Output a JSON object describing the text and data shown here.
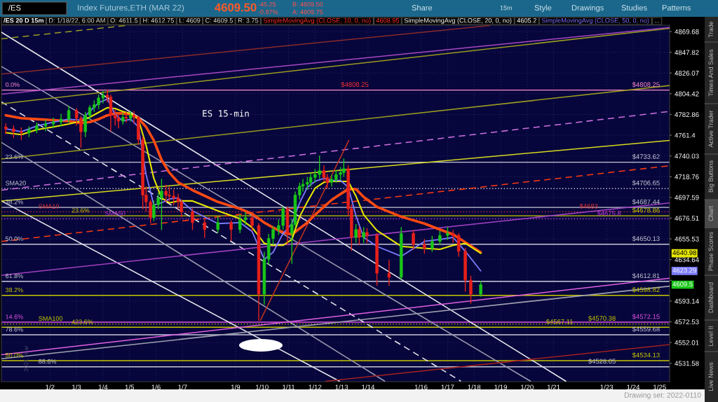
{
  "chart_data": {
    "type": "candlestick",
    "title": "Index Futures,ETH (MAR 22)",
    "x": [
      "2021-12-31T08:00",
      "2021-12-31T15:00",
      "2021-12-31T22:00",
      "2022-01-01T05:00",
      "2022-01-01T12:00",
      "2022-01-01T20:00",
      "2022-01-02T03:00",
      "2022-01-02T10:00",
      "2022-01-02T17:00",
      "2022-01-03T00:00",
      "2022-01-03T04:00",
      "2022-01-03T08:00",
      "2022-01-03T12:00",
      "2022-01-03T16:00",
      "2022-01-03T20:00",
      "2022-01-04T00:00",
      "2022-01-04T04:00",
      "2022-01-04T07:00",
      "2022-01-04T11:00",
      "2022-01-04T14:00",
      "2022-01-04T18:00",
      "2022-01-04T21:00",
      "2022-01-05T01:00",
      "2022-01-05T04:00",
      "2022-01-05T08:00",
      "2022-01-05T12:00",
      "2022-01-05T15:00",
      "2022-01-05T19:00",
      "2022-01-05T22:00",
      "2022-01-06T02:00",
      "2022-01-06T05:00",
      "2022-01-06T09:00",
      "2022-01-06T12:00",
      "2022-01-06T16:00",
      "2022-01-06T20:00",
      "2022-01-06T23:00",
      "2022-01-07T09:00",
      "2022-01-07T20:00",
      "2022-01-08T08:00",
      "2022-01-08T20:00",
      "2022-01-09T04:00",
      "2022-01-09T09:00",
      "2022-01-09T15:00",
      "2022-01-09T21:00",
      "2022-01-10T02:00",
      "2022-01-10T06:00",
      "2022-01-10T10:00",
      "2022-01-10T15:00",
      "2022-01-10T19:00",
      "2022-01-10T23:00",
      "2022-01-11T03:00",
      "2022-01-11T06:00",
      "2022-01-11T10:00",
      "2022-01-11T13:00",
      "2022-01-11T17:00",
      "2022-01-11T20:00",
      "2022-01-12T00:00",
      "2022-01-12T04:00",
      "2022-01-12T08:00",
      "2022-01-12T11:00",
      "2022-01-12T15:00",
      "2022-01-12T19:00",
      "2022-01-12T23:00",
      "2022-01-13T02:00",
      "2022-01-13T06:00",
      "2022-01-13T09:00",
      "2022-01-13T13:00",
      "2022-01-13T16:00",
      "2022-01-13T20:00",
      "2022-01-13T23:00",
      "2022-01-14T08:00",
      "2022-01-14T19:00",
      "2022-01-15T06:00",
      "2022-01-15T17:00",
      "2022-01-16T03:00",
      "2022-01-16T10:00",
      "2022-01-16T17:00",
      "2022-01-17T00:00",
      "2022-01-17T05:00",
      "2022-01-17T10:00",
      "2022-01-17T16:00",
      "2022-01-17T21:00",
      "2022-01-18T06:00"
    ],
    "ohlc": [
      [
        4770,
        4773,
        4763,
        4768
      ],
      [
        4768,
        4771,
        4759,
        4765
      ],
      [
        4765,
        4769,
        4757,
        4764
      ],
      [
        4764,
        4770,
        4760,
        4767
      ],
      [
        4767,
        4774,
        4764,
        4771
      ],
      [
        4771,
        4777,
        4766,
        4773
      ],
      [
        4773,
        4779,
        4769,
        4775
      ],
      [
        4775,
        4783,
        4771,
        4778
      ],
      [
        4778,
        4791,
        4775,
        4787
      ],
      [
        4787,
        4789,
        4772,
        4779
      ],
      [
        4779,
        4781,
        4749,
        4765
      ],
      [
        4765,
        4785,
        4760,
        4782
      ],
      [
        4782,
        4792,
        4778,
        4790
      ],
      [
        4790,
        4797,
        4786,
        4793
      ],
      [
        4793,
        4803,
        4789,
        4800
      ],
      [
        4800,
        4807,
        4795,
        4803
      ],
      [
        4803,
        4808,
        4796,
        4801
      ],
      [
        4801,
        4803,
        4766,
        4782
      ],
      [
        4782,
        4787,
        4772,
        4779
      ],
      [
        4779,
        4783,
        4769,
        4776
      ],
      [
        4776,
        4784,
        4773,
        4780
      ],
      [
        4780,
        4785,
        4775,
        4779
      ],
      [
        4779,
        4786,
        4776,
        4782
      ],
      [
        4782,
        4786,
        4774,
        4780
      ],
      [
        4780,
        4781,
        4752,
        4757
      ],
      [
        4757,
        4760,
        4686,
        4700
      ],
      [
        4700,
        4708,
        4684,
        4693
      ],
      [
        4693,
        4695,
        4672,
        4677
      ],
      [
        4677,
        4694,
        4674,
        4690
      ],
      [
        4690,
        4702,
        4686,
        4697
      ],
      [
        4697,
        4716,
        4665,
        4704
      ],
      [
        4704,
        4710,
        4693,
        4700
      ],
      [
        4700,
        4708,
        4694,
        4699
      ],
      [
        4699,
        4705,
        4690,
        4697
      ],
      [
        4697,
        4701,
        4686,
        4693
      ],
      [
        4693,
        4695,
        4678,
        4683
      ],
      [
        4683,
        4686,
        4665,
        4672
      ],
      [
        4672,
        4676,
        4657,
        4665
      ],
      [
        4665,
        4678,
        4662,
        4672
      ],
      [
        4672,
        4674,
        4654,
        4665
      ],
      [
        4665,
        4680,
        4662,
        4675
      ],
      [
        4675,
        4682,
        4670,
        4677
      ],
      [
        4677,
        4679,
        4664,
        4669
      ],
      [
        4669,
        4671,
        4574,
        4600
      ],
      [
        4600,
        4642,
        4590,
        4635
      ],
      [
        4635,
        4660,
        4630,
        4656
      ],
      [
        4656,
        4668,
        4650,
        4665
      ],
      [
        4665,
        4675,
        4660,
        4669
      ],
      [
        4669,
        4688,
        4665,
        4686
      ],
      [
        4686,
        4688,
        4650,
        4661
      ],
      [
        4661,
        4675,
        4631,
        4670
      ],
      [
        4670,
        4703,
        4668,
        4700
      ],
      [
        4700,
        4712,
        4696,
        4709
      ],
      [
        4709,
        4716,
        4704,
        4711
      ],
      [
        4711,
        4718,
        4706,
        4713
      ],
      [
        4713,
        4722,
        4709,
        4718
      ],
      [
        4718,
        4726,
        4713,
        4721
      ],
      [
        4721,
        4740,
        4717,
        4725
      ],
      [
        4725,
        4730,
        4714,
        4718
      ],
      [
        4718,
        4721,
        4707,
        4713
      ],
      [
        4713,
        4720,
        4709,
        4716
      ],
      [
        4716,
        4725,
        4713,
        4721
      ],
      [
        4721,
        4728,
        4716,
        4723
      ],
      [
        4723,
        4737,
        4719,
        4727
      ],
      [
        4727,
        4730,
        4679,
        4686
      ],
      [
        4686,
        4690,
        4644,
        4657
      ],
      [
        4657,
        4670,
        4652,
        4665
      ],
      [
        4665,
        4668,
        4650,
        4657
      ],
      [
        4657,
        4667,
        4652,
        4662
      ],
      [
        4662,
        4666,
        4652,
        4659
      ],
      [
        4659,
        4661,
        4609,
        4621
      ],
      [
        4621,
        4634,
        4609,
        4617
      ],
      [
        4617,
        4667,
        4615,
        4661
      ],
      [
        4661,
        4664,
        4645,
        4650
      ],
      [
        4650,
        4655,
        4641,
        4646
      ],
      [
        4646,
        4658,
        4643,
        4653
      ],
      [
        4653,
        4663,
        4650,
        4659
      ],
      [
        4659,
        4667,
        4655,
        4661
      ],
      [
        4661,
        4664,
        4652,
        4659
      ],
      [
        4659,
        4661,
        4638,
        4643
      ],
      [
        4643,
        4646,
        4603,
        4614
      ],
      [
        4614,
        4618,
        4591,
        4600
      ],
      [
        4600,
        4612.75,
        4598,
        4609.5
      ]
    ],
    "series": [
      {
        "type": "line",
        "color": "#7c7cff",
        "x": [
          "2021-12-31T08:00",
          "2021-12-31T22:00",
          "2022-01-01T12:00",
          "2022-01-02T03:00",
          "2022-01-02T17:00",
          "2022-01-03T04:00",
          "2022-01-03T12:00",
          "2022-01-03T20:00",
          "2022-01-04T04:00",
          "2022-01-04T11:00",
          "2022-01-04T18:00",
          "2022-01-05T01:00",
          "2022-01-05T08:00",
          "2022-01-05T15:00",
          "2022-01-05T22:00",
          "2022-01-06T05:00",
          "2022-01-06T12:00",
          "2022-01-06T20:00",
          "2022-01-07T09:00",
          "2022-01-08T08:00",
          "2022-01-09T04:00",
          "2022-01-09T15:00",
          "2022-01-10T02:00",
          "2022-01-10T10:00",
          "2022-01-10T19:00",
          "2022-01-11T03:00",
          "2022-01-11T10:00",
          "2022-01-11T17:00",
          "2022-01-12T00:00",
          "2022-01-12T08:00",
          "2022-01-12T15:00",
          "2022-01-12T23:00",
          "2022-01-13T06:00",
          "2022-01-13T13:00",
          "2022-01-13T20:00",
          "2022-01-14T08:00",
          "2022-01-15T06:00",
          "2022-01-16T03:00",
          "2022-01-16T17:00",
          "2022-01-17T05:00",
          "2022-01-17T16:00",
          "2022-01-18T06:00"
        ],
        "values": [
          4768,
          4765,
          4771,
          4775,
          4778,
          4777,
          4786,
          4795,
          4799,
          4783,
          4776,
          4778,
          4770,
          4721,
          4690,
          4692,
          4696,
          4697,
          4684,
          4671,
          4672,
          4663,
          4635,
          4642,
          4661,
          4671,
          4692,
          4708,
          4714,
          4717,
          4715,
          4715,
          4708,
          4679,
          4657,
          4648,
          4638,
          4653,
          4655,
          4657,
          4643,
          4623.29
        ]
      },
      {
        "type": "line",
        "color": "#e6e600",
        "x": [
          "2021-12-31T08:00",
          "2021-12-31T22:00",
          "2022-01-01T12:00",
          "2022-01-02T03:00",
          "2022-01-02T17:00",
          "2022-01-03T04:00",
          "2022-01-03T12:00",
          "2022-01-03T20:00",
          "2022-01-04T04:00",
          "2022-01-04T11:00",
          "2022-01-04T18:00",
          "2022-01-05T01:00",
          "2022-01-05T08:00",
          "2022-01-05T15:00",
          "2022-01-05T22:00",
          "2022-01-06T05:00",
          "2022-01-06T12:00",
          "2022-01-06T20:00",
          "2022-01-07T09:00",
          "2022-01-08T08:00",
          "2022-01-09T04:00",
          "2022-01-09T15:00",
          "2022-01-10T02:00",
          "2022-01-10T10:00",
          "2022-01-10T19:00",
          "2022-01-11T03:00",
          "2022-01-11T10:00",
          "2022-01-11T17:00",
          "2022-01-12T00:00",
          "2022-01-12T08:00",
          "2022-01-12T15:00",
          "2022-01-12T23:00",
          "2022-01-13T06:00",
          "2022-01-13T13:00",
          "2022-01-13T20:00",
          "2022-01-14T08:00",
          "2022-01-15T06:00",
          "2022-01-16T03:00",
          "2022-01-16T17:00",
          "2022-01-17T05:00",
          "2022-01-17T16:00",
          "2022-01-18T06:00"
        ],
        "values": [
          4764,
          4762,
          4767,
          4770,
          4773,
          4776,
          4780,
          4785,
          4790,
          4789,
          4786,
          4784,
          4778,
          4751,
          4717,
          4697,
          4692,
          4694,
          4694,
          4684,
          4676,
          4667,
          4651,
          4649,
          4649,
          4655,
          4678,
          4693,
          4707,
          4713,
          4714,
          4714,
          4714,
          4699,
          4680,
          4664,
          4648,
          4646,
          4645,
          4649,
          4651,
          4640.98
        ]
      },
      {
        "type": "line",
        "color": "#ff4a12",
        "x": [
          "2021-12-31T08:00",
          "2021-12-31T22:00",
          "2022-01-01T12:00",
          "2022-01-02T03:00",
          "2022-01-02T17:00",
          "2022-01-03T04:00",
          "2022-01-03T12:00",
          "2022-01-03T20:00",
          "2022-01-04T04:00",
          "2022-01-04T11:00",
          "2022-01-04T18:00",
          "2022-01-05T01:00",
          "2022-01-05T08:00",
          "2022-01-05T15:00",
          "2022-01-05T22:00",
          "2022-01-06T05:00",
          "2022-01-06T12:00",
          "2022-01-06T20:00",
          "2022-01-07T09:00",
          "2022-01-08T08:00",
          "2022-01-09T04:00",
          "2022-01-09T15:00",
          "2022-01-10T02:00",
          "2022-01-10T10:00",
          "2022-01-10T19:00",
          "2022-01-11T03:00",
          "2022-01-11T10:00",
          "2022-01-11T17:00",
          "2022-01-12T00:00",
          "2022-01-12T08:00",
          "2022-01-12T15:00",
          "2022-01-12T23:00",
          "2022-01-13T06:00",
          "2022-01-13T13:00",
          "2022-01-13T20:00",
          "2022-01-14T08:00",
          "2022-01-15T06:00",
          "2022-01-16T03:00",
          "2022-01-16T17:00",
          "2022-01-17T05:00",
          "2022-01-17T16:00",
          "2022-01-18T06:00"
        ],
        "values": [
          4782,
          4779,
          4778,
          4777,
          4776,
          4774,
          4775,
          4778,
          4782,
          4784,
          4784,
          4783,
          4779,
          4770,
          4756,
          4736,
          4723,
          4713,
          4705,
          4693,
          4686,
          4681,
          4672,
          4667,
          4662,
          4660,
          4666,
          4672,
          4680,
          4688,
          4695,
          4701,
          4706,
          4706,
          4698,
          4688,
          4678,
          4671,
          4665,
          4660,
          4652,
          4642
        ]
      },
      {
        "type": "line",
        "color": "#e8e8f0",
        "x": [
          "2021-12-31T04:00",
          "2022-01-21T11:00"
        ],
        "values": [
          4869,
          4514
        ]
      },
      {
        "type": "line",
        "color": "#9a9ab0",
        "x": [
          "2021-12-31T04:00",
          "2022-01-20T03:00"
        ],
        "values": [
          4833,
          4514
        ]
      },
      {
        "type": "line",
        "color": "#e8e8f0",
        "line_style": "dashed",
        "x": [
          "2021-12-31T04:00",
          "2022-01-17T12:00"
        ],
        "values": [
          4796,
          4514
        ]
      },
      {
        "type": "line",
        "color": "#9a9ab0",
        "x": [
          "2021-12-31T04:00",
          "2022-01-14T15:00"
        ],
        "values": [
          4754,
          4514
        ]
      },
      {
        "type": "line",
        "color": "#e8e8f0",
        "x": [
          "2021-12-31T04:00",
          "2022-01-12T22:00"
        ],
        "values": [
          4694,
          4514
        ]
      },
      {
        "type": "line",
        "color": "#9a9a20",
        "x": [
          "2021-12-31T04:00",
          "2022-01-25T09:00"
        ],
        "values": [
          4794,
          4873
        ]
      },
      {
        "type": "line",
        "color": "#9a9a20",
        "x": [
          "2021-12-31T04:00",
          "2022-01-25T09:00"
        ],
        "values": [
          4737,
          4813
        ]
      },
      {
        "type": "line",
        "color": "#d8d820",
        "x": [
          "2021-12-31T04:00",
          "2022-01-25T09:00"
        ],
        "values": [
          4694,
          4756
        ]
      },
      {
        "type": "line",
        "color": "#d070e0",
        "line_style": "dashed",
        "x": [
          "2021-12-31T04:00",
          "2022-01-25T09:00"
        ],
        "values": [
          4705,
          4786
        ]
      },
      {
        "type": "line",
        "color": "#a040c0",
        "x": [
          "2021-12-31T04:00",
          "2022-01-25T09:00"
        ],
        "values": [
          4619,
          4692
        ]
      },
      {
        "type": "line",
        "color": "#e060e0",
        "x": [
          "2021-12-31T04:00",
          "2022-01-25T09:00"
        ],
        "values": [
          4540,
          4616
        ]
      },
      {
        "type": "line",
        "color": "#a848c0",
        "x": [
          "2021-12-31T04:00",
          "2022-01-25T09:00"
        ],
        "values": [
          4804,
          4874
        ]
      },
      {
        "type": "line",
        "color": "#a0a0b0",
        "x": [
          "2021-12-31T04:00",
          "2022-01-25T09:00"
        ],
        "values": [
          4536,
          4608
        ]
      },
      {
        "type": "line",
        "color": "#ff3a10",
        "line_style": "dashed",
        "x": [
          "2021-12-31T04:00",
          "2022-01-25T09:00"
        ],
        "values": [
          4653,
          4730
        ]
      },
      {
        "type": "line",
        "color": "#c03020",
        "x": [
          "2022-01-09T22:30",
          "2022-01-13T06:30"
        ],
        "values": [
          4574,
          4756
        ]
      },
      {
        "type": "line",
        "color": "#a02020",
        "x": [
          "2022-01-12T10:00",
          "2022-01-25T09:00"
        ],
        "values": [
          4514,
          4550
        ]
      },
      {
        "type": "line",
        "color": "#8a2a2a",
        "x": [
          "2021-12-31T04:00",
          "2022-01-18T14:00"
        ],
        "values": [
          4825,
          4876
        ]
      },
      {
        "type": "line",
        "color": "#9a9a20",
        "line_style": "dashed",
        "x": [
          "2021-12-31T04:00",
          "2022-01-04T20:00"
        ],
        "values": [
          4862,
          4876
        ]
      }
    ],
    "xlim": [
      "2021-12-31T04:00",
      "2022-01-25T09:00"
    ],
    "ylim": [
      4513.5,
      4876.4
    ],
    "log": true,
    "grid": true,
    "xticks": [
      {
        "value": "2022-01-02",
        "label": "1/2"
      },
      {
        "value": "2022-01-03",
        "label": "1/3"
      },
      {
        "value": "2022-01-04",
        "label": "1/4"
      },
      {
        "value": "2022-01-05",
        "label": "1/5"
      },
      {
        "value": "2022-01-06",
        "label": "1/6"
      },
      {
        "value": "2022-01-07",
        "label": "1/7"
      },
      {
        "value": "2022-01-09",
        "label": "1/9"
      },
      {
        "value": "2022-01-10",
        "label": "1/10"
      },
      {
        "value": "2022-01-11",
        "label": "1/11"
      },
      {
        "value": "2022-01-12",
        "label": "1/12"
      },
      {
        "value": "2022-01-13",
        "label": "1/13"
      },
      {
        "value": "2022-01-14",
        "label": "1/14"
      },
      {
        "value": "2022-01-16",
        "label": "1/16"
      },
      {
        "value": "2022-01-17",
        "label": "1/17"
      },
      {
        "value": "2022-01-18",
        "label": "1/18"
      },
      {
        "value": "2022-01-19",
        "label": "1/19"
      },
      {
        "value": "2022-01-20",
        "label": "1/20"
      },
      {
        "value": "2022-01-21",
        "label": "1/21"
      },
      {
        "value": "2022-01-23",
        "label": "1/23"
      },
      {
        "value": "2022-01-24",
        "label": "1/24"
      },
      {
        "value": "2022-01-25",
        "label": "1/25"
      }
    ],
    "yticks": [
      4531.58,
      4552.01,
      4572.53,
      4593.14,
      {
        "value": 4613.84,
        "label": null
      },
      4634.64,
      4655.53,
      4676.51,
      4697.59,
      4718.76,
      4740.03,
      4761.4,
      4782.86,
      4804.42,
      4826.07,
      4847.82,
      4869.68
    ],
    "ref_lines": [
      {
        "axis": "y",
        "value": 4808.25,
        "label": "$4808.25",
        "color": "#ff8ccf"
      },
      {
        "axis": "y",
        "value": 4733.62,
        "label": "$4733.62",
        "color": "#c8c8d8"
      },
      {
        "axis": "y",
        "value": 4706.65,
        "label": "$4706.65",
        "color": "#c8c8d8",
        "line_style": "dotted"
      },
      {
        "axis": "y",
        "value": 4687.44,
        "label": "$4687.44",
        "color": "#c8c8d8"
      },
      {
        "axis": "y",
        "value": 4683,
        "label": "$4683",
        "color": "#e03030",
        "line_style": "dotted"
      },
      {
        "axis": "y",
        "value": 4678.86,
        "label": "$4678.86",
        "color": "#c8c800"
      },
      {
        "axis": "y",
        "value": 4675.8,
        "label": "$4675.8",
        "color": "#c040e0",
        "line_style": "dotted"
      },
      {
        "axis": "y",
        "value": 4650.13,
        "label": "$4650.13",
        "color": "#c8c8d8"
      },
      {
        "axis": "y",
        "value": 4612.81,
        "label": "$4612.81",
        "color": "#c8c8d8"
      },
      {
        "axis": "y",
        "value": 4598.82,
        "label": "$4598.82",
        "color": "#c8c800"
      },
      {
        "axis": "y",
        "value": 4572.15,
        "label": "$4572.15",
        "color": "#e050e0"
      },
      {
        "axis": "y",
        "value": 4570.38,
        "label": "$4570.38",
        "color": "#c8c800",
        "line_style": "dotted"
      },
      {
        "axis": "y",
        "value": 4567.11,
        "label": "$4567.11",
        "color": "#c8c800"
      },
      {
        "axis": "y",
        "value": 4559.68,
        "label": "$4559.68",
        "color": "#c8c8d8"
      },
      {
        "axis": "y",
        "value": 4534.13,
        "label": "$4534.13",
        "color": "#c8c800"
      },
      {
        "axis": "y",
        "value": 4528.05,
        "label": "$4528.05",
        "color": "#c8c8d8"
      }
    ],
    "annotations": [
      "/ES",
      "4609.50",
      "-45.25",
      "-0.97%",
      "B: 4609.50",
      "A: 4609.75",
      "Share",
      "15m",
      "Style",
      "Drawings",
      "Studies",
      "Patterns",
      "/ES 20 D 15m",
      "D: 1/18/22, 6:00 AM",
      "O: 4611.5",
      "H: 4612.75",
      "L: 4609",
      "C: 4609.5",
      "R: 3.75",
      "SimpleMovingAvg (CLOSE, 10, 0, no)",
      "4608.95",
      "SimpleMovingAvg (CLOSE, 20, 0, no)",
      "4605.2",
      "SimpleMovingAvg (CLOSE, 50, 0, no)",
      "...",
      "Trade",
      "Times And Sales",
      "Active Trader",
      "Big Buttons",
      "Chart",
      "Phase Scores",
      "Dashboard",
      "Level II",
      "Live News",
      "Drawing set: 2022-0110",
      "ES 15-min",
      "2021 Year",
      "4640.98",
      "4623.29",
      "4609.5",
      {
        "text": "0.0%",
        "x": "2021-12-31T04:00",
        "y": 4808.25
      },
      {
        "text": "23.6%",
        "x": "2021-12-31T04:00",
        "y": 4733.62
      },
      {
        "text": "SMA20",
        "x": "2021-12-31T04:00",
        "y": 4706.65
      },
      {
        "text": "38.2%",
        "x": "2021-12-31T04:00",
        "y": 4687.44
      },
      {
        "text": "SMA10",
        "x": "2022-01-01T10:00",
        "y": 4683
      },
      {
        "text": "23.6%",
        "x": "2022-01-02T16:00",
        "y": 4678.86
      },
      {
        "text": "SMA50",
        "x": "2022-01-03T22:00",
        "y": 4675.8
      },
      {
        "text": "50.0%",
        "x": "2021-12-31T04:00",
        "y": 4650.13
      },
      {
        "text": "61.8%",
        "x": "2021-12-31T04:00",
        "y": 4612.81
      },
      {
        "text": "38.2%",
        "x": "2021-12-31T04:00",
        "y": 4598.82
      },
      {
        "text": "14.6%",
        "x": "2021-12-31T04:00",
        "y": 4572.15
      },
      {
        "text": "SMA100",
        "x": "2022-01-01T10:00",
        "y": 4570.38
      },
      {
        "text": "423.6%",
        "x": "2022-01-02T16:00",
        "y": 4567.11
      },
      {
        "text": "78.6%",
        "x": "2021-12-31T04:00",
        "y": 4559.68
      },
      {
        "text": "50.0%",
        "x": "2021-12-31T04:00",
        "y": 4534.13
      },
      {
        "text": "88.6%",
        "x": "2022-01-01T10:00",
        "y": 4528.05
      },
      {
        "text": "$4808.25",
        "x": "2022-01-13T12:00",
        "y": 4808.25
      }
    ]
  }
}
